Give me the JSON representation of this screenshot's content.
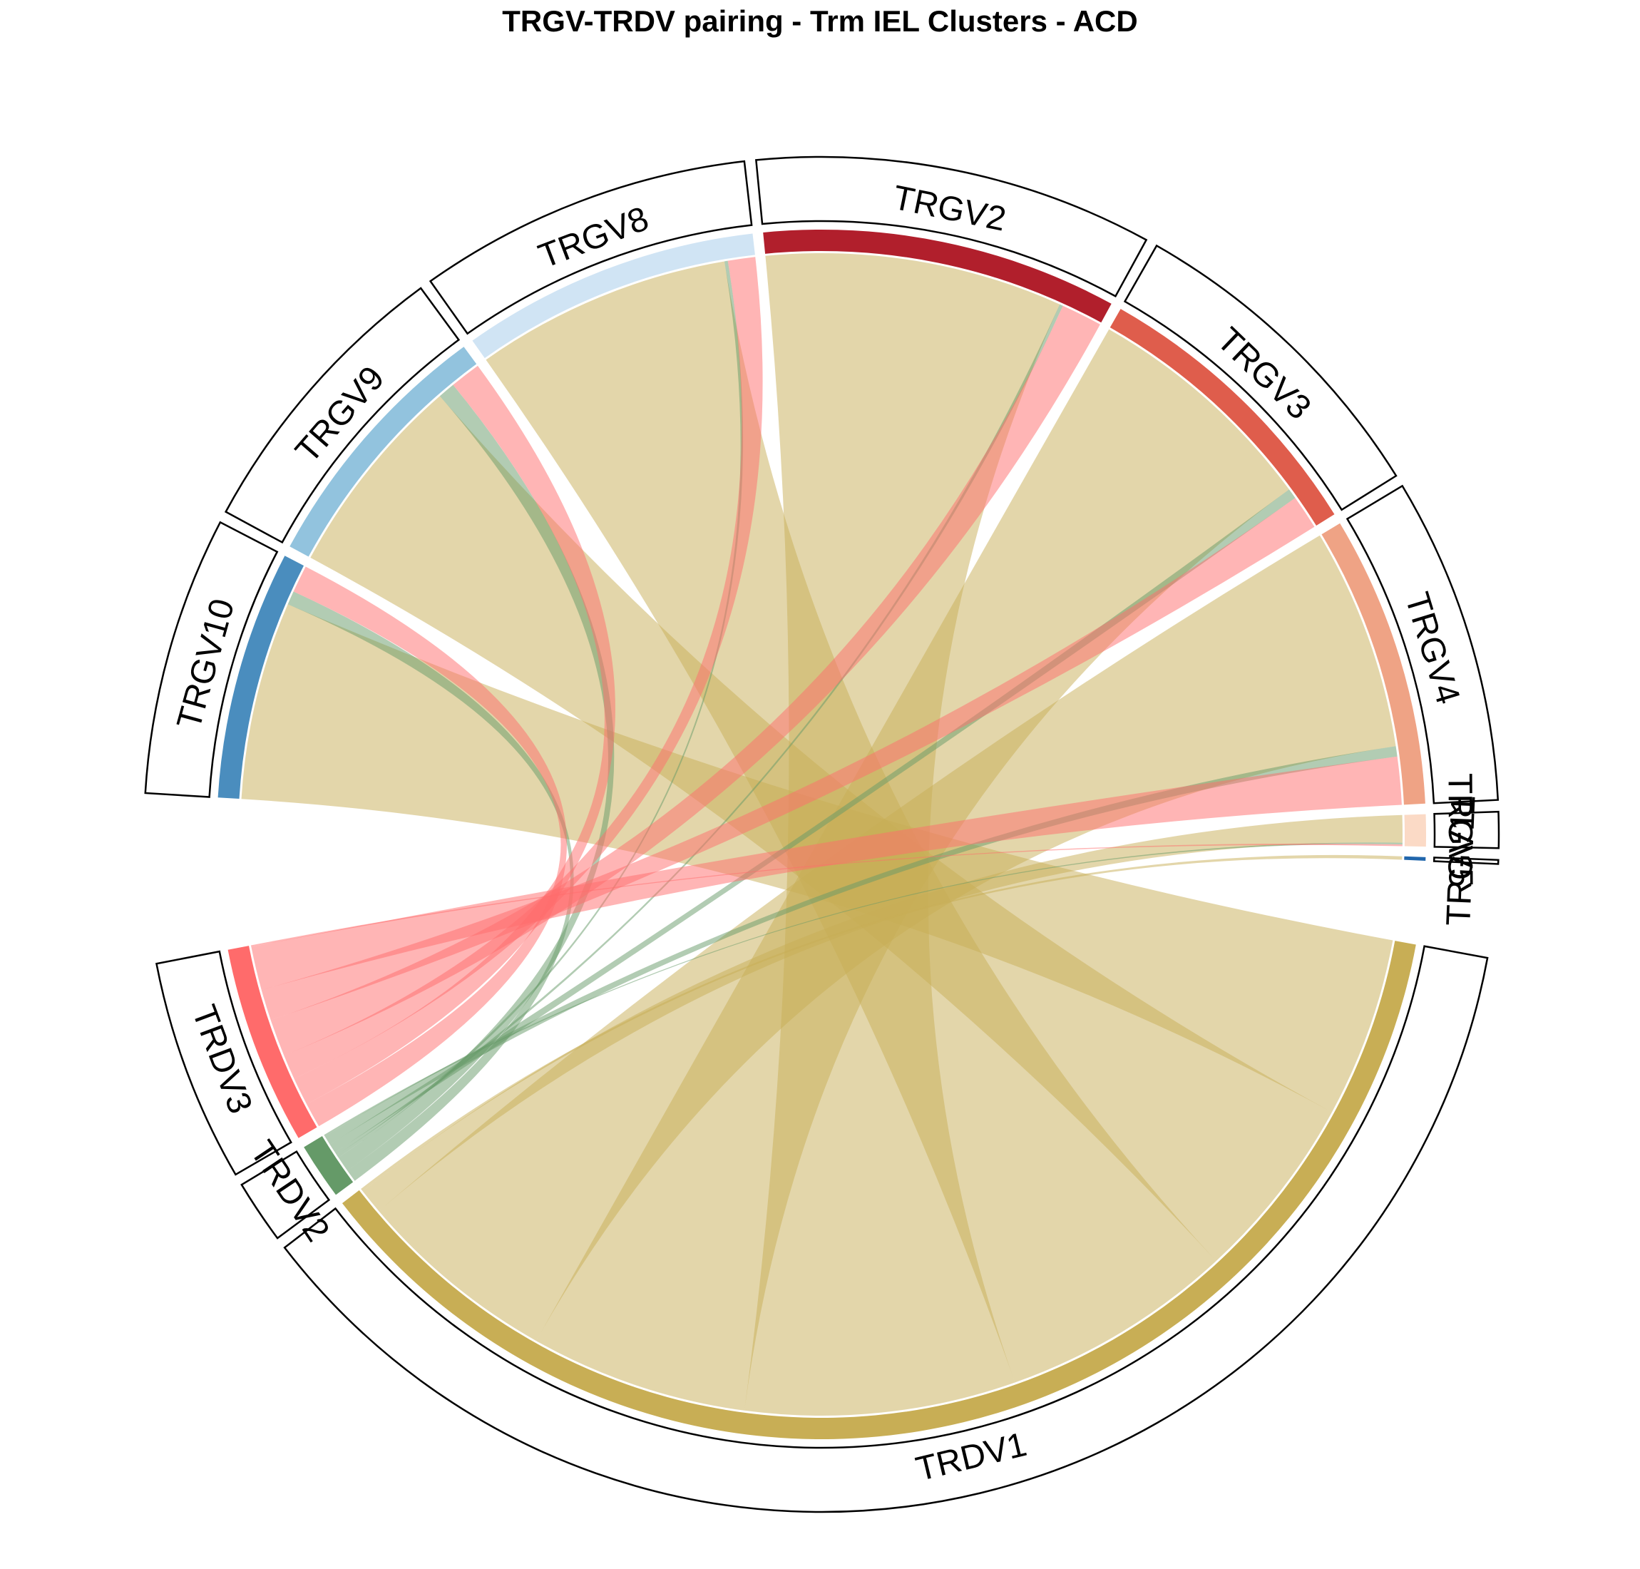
{
  "chart_data": {
    "type": "chord",
    "title": "TRGV-TRDV pairing - Trm IEL Clusters - ACD",
    "sectors": [
      {
        "name": "TRGV10",
        "color": "#4A8DBE"
      },
      {
        "name": "TRGV9",
        "color": "#92C3DE"
      },
      {
        "name": "TRGV8",
        "color": "#D0E4F4"
      },
      {
        "name": "TRGV2",
        "color": "#B11F2C"
      },
      {
        "name": "TRGV3",
        "color": "#DF5D4C"
      },
      {
        "name": "TRGV4",
        "color": "#EFA385"
      },
      {
        "name": "TRGV5",
        "color": "#FBDAC6"
      },
      {
        "name": "TRGV11",
        "color": "#2166AC"
      },
      {
        "name": "TRDV1",
        "color": "#C8AE55"
      },
      {
        "name": "TRDV2",
        "color": "#659A68"
      },
      {
        "name": "TRDV3",
        "color": "#FF6B6B"
      }
    ],
    "top_order": [
      "TRGV10",
      "TRGV9",
      "TRGV8",
      "TRGV2",
      "TRGV3",
      "TRGV4",
      "TRGV5",
      "TRGV11"
    ],
    "bottom_order": [
      "TRDV1",
      "TRDV2",
      "TRDV3"
    ],
    "links": [
      {
        "from": "TRGV10",
        "to": "TRDV1",
        "value": 58
      },
      {
        "from": "TRGV10",
        "to": "TRDV2",
        "value": 4
      },
      {
        "from": "TRGV10",
        "to": "TRDV3",
        "value": 8
      },
      {
        "from": "TRGV9",
        "to": "TRDV1",
        "value": 60
      },
      {
        "from": "TRGV9",
        "to": "TRDV2",
        "value": 5
      },
      {
        "from": "TRGV9",
        "to": "TRDV3",
        "value": 9
      },
      {
        "from": "TRGV8",
        "to": "TRDV1",
        "value": 75
      },
      {
        "from": "TRGV8",
        "to": "TRDV2",
        "value": 1
      },
      {
        "from": "TRGV8",
        "to": "TRDV3",
        "value": 8
      },
      {
        "from": "TRGV2",
        "to": "TRDV1",
        "value": 87
      },
      {
        "from": "TRGV2",
        "to": "TRDV2",
        "value": 1
      },
      {
        "from": "TRGV2",
        "to": "TRDV3",
        "value": 12
      },
      {
        "from": "TRGV3",
        "to": "TRDV1",
        "value": 70
      },
      {
        "from": "TRGV3",
        "to": "TRDV2",
        "value": 3
      },
      {
        "from": "TRGV3",
        "to": "TRDV3",
        "value": 10
      },
      {
        "from": "TRGV4",
        "to": "TRDV1",
        "value": 65
      },
      {
        "from": "TRGV4",
        "to": "TRDV2",
        "value": 3
      },
      {
        "from": "TRGV4",
        "to": "TRDV3",
        "value": 14
      },
      {
        "from": "TRGV5",
        "to": "TRDV1",
        "value": 8
      },
      {
        "from": "TRGV5",
        "to": "TRDV2",
        "value": 0.5
      },
      {
        "from": "TRGV5",
        "to": "TRDV3",
        "value": 0.5
      },
      {
        "from": "TRGV11",
        "to": "TRDV1",
        "value": 1
      }
    ],
    "link_color_by": "TRDV",
    "link_opacity": 0.5
  }
}
